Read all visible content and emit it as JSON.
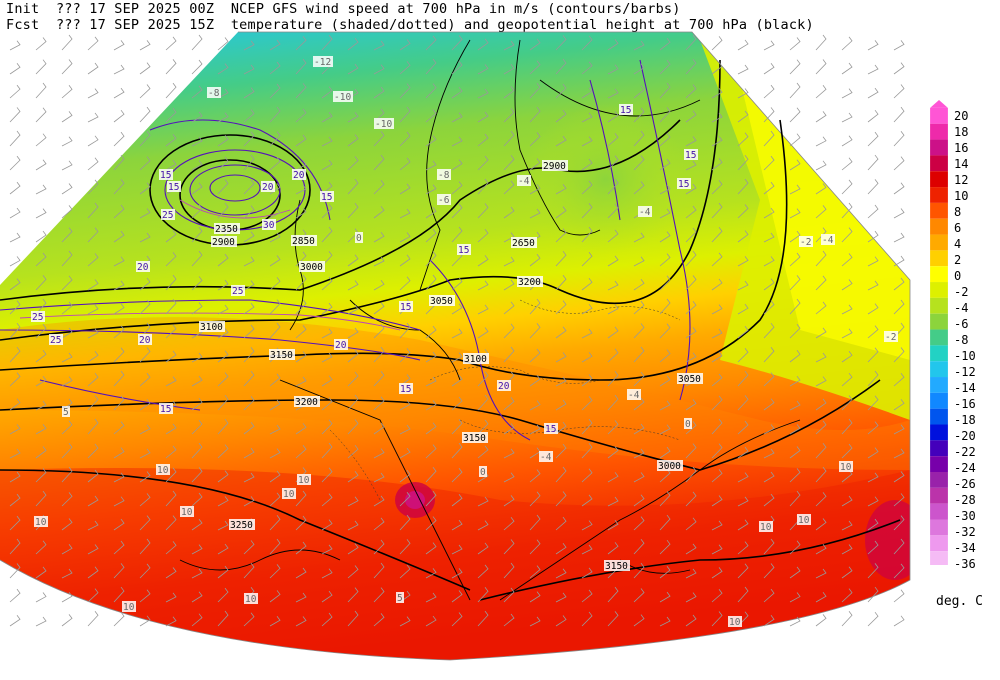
{
  "header": {
    "line1_prefix": "Init",
    "line1_date": "??? 17 SEP 2025 00Z",
    "line1_title": "NCEP GFS wind speed at 700 hPa in m/s (contours/barbs)",
    "line2_prefix": "Fcst",
    "line2_date": "??? 17 SEP 2025 15Z",
    "line2_title": "temperature (shaded/dotted) and geopotential height at 700 hPa (black)"
  },
  "legend": {
    "units": "deg. C",
    "levels": [
      "20",
      "18",
      "16",
      "14",
      "12",
      "10",
      "8",
      "6",
      "4",
      "2",
      "0",
      "-2",
      "-4",
      "-6",
      "-8",
      "-10",
      "-12",
      "-14",
      "-16",
      "-18",
      "-20",
      "-22",
      "-24",
      "-26",
      "-28",
      "-30",
      "-32",
      "-34",
      "-36"
    ],
    "colors": [
      "#ff55d5",
      "#ee2aaa",
      "#cc1188",
      "#cc0044",
      "#dd0000",
      "#ee2200",
      "#ff5500",
      "#ff8800",
      "#ffaa00",
      "#ffd000",
      "#ffff00",
      "#ddf000",
      "#b6e21e",
      "#8cd43c",
      "#44cc88",
      "#22d2c4",
      "#22c6ec",
      "#22aaff",
      "#1188ff",
      "#0055ee",
      "#0011dd",
      "#4400bb",
      "#7700aa",
      "#9922aa",
      "#bb33aa",
      "#cc55cc",
      "#dd77dd",
      "#ee99ee",
      "#f5bbf5"
    ]
  },
  "map": {
    "height_labels": [
      "2350",
      "2900",
      "2850",
      "3000",
      "3050",
      "3100",
      "3150",
      "3200",
      "3250",
      "2650",
      "2900",
      "3200",
      "3050",
      "3100",
      "3150",
      "3000",
      "3150"
    ],
    "wind_labels": [
      "15",
      "15",
      "20",
      "25",
      "30",
      "15",
      "20",
      "25",
      "20",
      "20",
      "25",
      "25",
      "15",
      "20",
      "15",
      "15",
      "15",
      "15",
      "15",
      "15",
      "20",
      "15"
    ],
    "temp_labels": [
      "-8",
      "-10",
      "-12",
      "-10",
      "-8",
      "-6",
      "-4",
      "-4",
      "-4",
      "-2",
      "-4",
      "0",
      "-2",
      "0",
      "-4",
      "0",
      "5",
      "10",
      "10",
      "10",
      "10",
      "10",
      "10",
      "10",
      "10",
      "5",
      "10",
      "10",
      "10"
    ]
  }
}
